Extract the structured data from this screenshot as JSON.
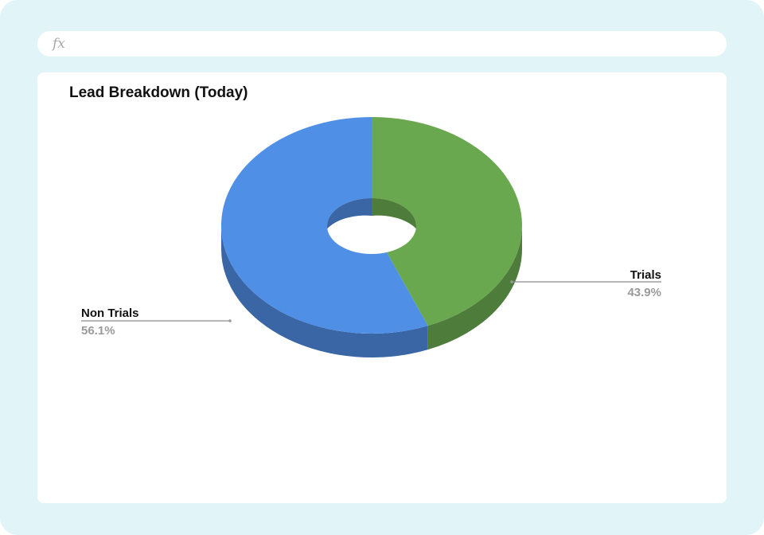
{
  "formula_bar": {
    "icon": "fx-icon",
    "icon_text": "fx",
    "value": ""
  },
  "colors": {
    "background": "#e1f4f7",
    "card": "#ffffff",
    "trials": "#6aa84f",
    "trials_side": "#4e7c3a",
    "non_trials": "#4f8fe6",
    "non_trials_side": "#3a66a6",
    "percent_text": "#9a9a9a"
  },
  "chart_data": {
    "type": "pie",
    "style": "3d-donut",
    "title": "Lead Breakdown (Today)",
    "slices": [
      {
        "name": "Trials",
        "value": 43.9,
        "label": "Trials",
        "percent_label": "43.9%",
        "color": "#6aa84f"
      },
      {
        "name": "Non Trials",
        "value": 56.1,
        "label": "Non Trials",
        "percent_label": "56.1%",
        "color": "#4f8fe6"
      }
    ],
    "legend": "none",
    "labels": "outside-with-leader-lines"
  }
}
